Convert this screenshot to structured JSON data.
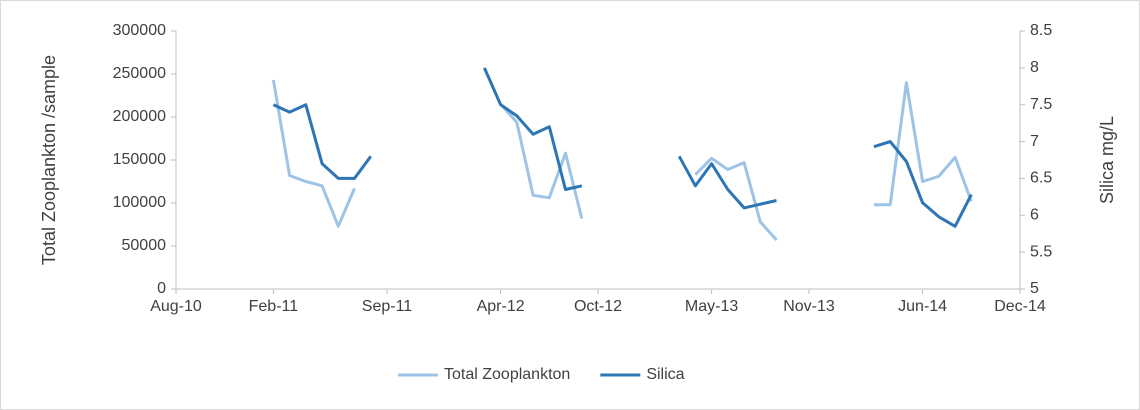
{
  "chart_data": {
    "type": "line",
    "y_label": "Total Zooplankton /sample",
    "y2_label": "Silica  mg/L",
    "x": [
      "2011-02",
      "2011-03",
      "2011-04",
      "2011-05",
      "2011-06",
      "2011-07",
      "2011-08",
      "2011-12",
      "2012-03",
      "2012-04",
      "2012-05",
      "2012-06",
      "2012-07",
      "2012-08",
      "2012-09",
      "2012-12",
      "2013-03",
      "2013-04",
      "2013-05",
      "2013-06",
      "2013-07",
      "2013-08",
      "2013-09",
      "2013-12",
      "2014-03",
      "2014-04",
      "2014-05",
      "2014-06",
      "2014-07",
      "2014-08",
      "2014-09"
    ],
    "series": [
      {
        "name": "Total Zooplankton",
        "color": "#9dc3e6",
        "values": [
          243000,
          132000,
          125000,
          120000,
          73000,
          117000,
          null,
          null,
          null,
          215000,
          194000,
          109000,
          106000,
          158000,
          82000,
          null,
          null,
          133000,
          152000,
          139000,
          147000,
          78000,
          57000,
          null,
          98000,
          98000,
          240000,
          125000,
          131000,
          153000,
          102000
        ]
      },
      {
        "name": "Silica",
        "color": "#2e75b6",
        "axis": "y2",
        "values": [
          7.5,
          7.4,
          7.5,
          6.7,
          6.5,
          6.5,
          6.8,
          null,
          8.0,
          7.5,
          7.35,
          7.1,
          7.2,
          6.35,
          6.4,
          null,
          6.8,
          6.4,
          6.7,
          6.35,
          6.1,
          6.15,
          6.2,
          null,
          6.93,
          7.0,
          6.73,
          6.17,
          5.98,
          5.85,
          6.28
        ]
      }
    ],
    "xlim": [
      "2010-08",
      "2014-12"
    ],
    "xticks": [
      {
        "value": "2010-08",
        "label": "Aug-10"
      },
      {
        "value": "2011-02",
        "label": "Feb-11"
      },
      {
        "value": "2011-09",
        "label": "Sep-11"
      },
      {
        "value": "2012-04",
        "label": "Apr-12"
      },
      {
        "value": "2012-10",
        "label": "Oct-12"
      },
      {
        "value": "2013-05",
        "label": "May-13"
      },
      {
        "value": "2013-11",
        "label": "Nov-13"
      },
      {
        "value": "2014-06",
        "label": "Jun-14"
      },
      {
        "value": "2014-12",
        "label": "Dec-14"
      }
    ],
    "ylim": [
      0,
      300000
    ],
    "yticks": [
      0,
      50000,
      100000,
      150000,
      200000,
      250000,
      300000
    ],
    "y2lim": [
      5,
      8.5
    ],
    "y2ticks": [
      5,
      5.5,
      6,
      6.5,
      7,
      7.5,
      8,
      8.5
    ],
    "grid": false,
    "legend": "bottom"
  }
}
